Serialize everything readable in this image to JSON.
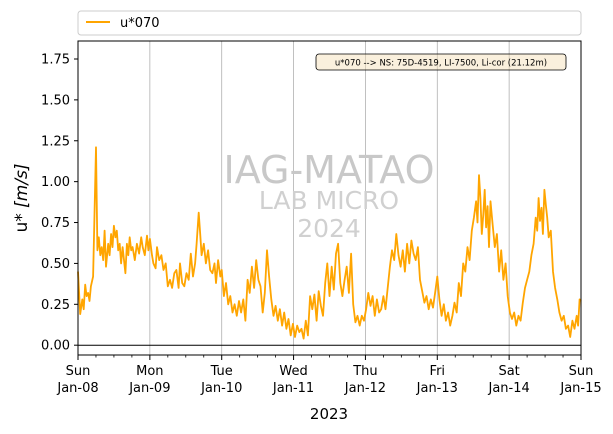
{
  "chart_data": {
    "type": "line",
    "title": "",
    "xlabel": "2023",
    "ylabel": "u* [m/s]",
    "ylabel_parts": {
      "name": "u* ",
      "unit": "[m/s]"
    },
    "ylim": [
      -0.06,
      1.86
    ],
    "xlim": [
      0,
      7
    ],
    "grid": "vertical at day ticks",
    "legend": {
      "placement": "top-left, above axes",
      "entries": [
        "u*070"
      ]
    },
    "annotation": "u*070 --> NS: 75D-4519, LI-7500, Li-cor (21.12m)",
    "watermark": [
      "IAG-MATAO",
      "LAB MICRO",
      "2024"
    ],
    "yticks": [
      {
        "value": 0.0,
        "label": "0.00"
      },
      {
        "value": 0.25,
        "label": "0.25"
      },
      {
        "value": 0.5,
        "label": "0.50"
      },
      {
        "value": 0.75,
        "label": "0.75"
      },
      {
        "value": 1.0,
        "label": "1.00"
      },
      {
        "value": 1.25,
        "label": "1.25"
      },
      {
        "value": 1.5,
        "label": "1.50"
      },
      {
        "value": 1.75,
        "label": "1.75"
      }
    ],
    "xticks": [
      {
        "value": 0,
        "day": "Sun",
        "date": "Jan-08"
      },
      {
        "value": 1,
        "day": "Mon",
        "date": "Jan-09"
      },
      {
        "value": 2,
        "day": "Tue",
        "date": "Jan-10"
      },
      {
        "value": 3,
        "day": "Wed",
        "date": "Jan-11"
      },
      {
        "value": 4,
        "day": "Thu",
        "date": "Jan-12"
      },
      {
        "value": 5,
        "day": "Fri",
        "date": "Jan-13"
      },
      {
        "value": 6,
        "day": "Sat",
        "date": "Jan-14"
      },
      {
        "value": 7,
        "day": "Sun",
        "date": "Jan-15"
      }
    ],
    "zero_line": 0,
    "series": [
      {
        "name": "u*070",
        "color": "#ffa500",
        "points": [
          [
            0.0,
            0.45
          ],
          [
            0.03,
            0.19
          ],
          [
            0.06,
            0.28
          ],
          [
            0.08,
            0.22
          ],
          [
            0.1,
            0.37
          ],
          [
            0.12,
            0.3
          ],
          [
            0.14,
            0.32
          ],
          [
            0.16,
            0.27
          ],
          [
            0.18,
            0.36
          ],
          [
            0.21,
            0.42
          ],
          [
            0.25,
            1.21
          ],
          [
            0.27,
            0.58
          ],
          [
            0.29,
            0.66
          ],
          [
            0.31,
            0.55
          ],
          [
            0.33,
            0.6
          ],
          [
            0.35,
            0.52
          ],
          [
            0.37,
            0.7
          ],
          [
            0.39,
            0.48
          ],
          [
            0.42,
            0.62
          ],
          [
            0.44,
            0.55
          ],
          [
            0.46,
            0.68
          ],
          [
            0.48,
            0.6
          ],
          [
            0.5,
            0.73
          ],
          [
            0.52,
            0.66
          ],
          [
            0.54,
            0.7
          ],
          [
            0.56,
            0.58
          ],
          [
            0.58,
            0.62
          ],
          [
            0.6,
            0.5
          ],
          [
            0.62,
            0.6
          ],
          [
            0.64,
            0.52
          ],
          [
            0.66,
            0.44
          ],
          [
            0.68,
            0.62
          ],
          [
            0.7,
            0.55
          ],
          [
            0.72,
            0.66
          ],
          [
            0.74,
            0.58
          ],
          [
            0.76,
            0.6
          ],
          [
            0.79,
            0.52
          ],
          [
            0.82,
            0.62
          ],
          [
            0.85,
            0.56
          ],
          [
            0.88,
            0.66
          ],
          [
            0.9,
            0.6
          ],
          [
            0.93,
            0.55
          ],
          [
            0.96,
            0.67
          ],
          [
            0.98,
            0.58
          ],
          [
            1.0,
            0.65
          ],
          [
            1.03,
            0.55
          ],
          [
            1.05,
            0.5
          ],
          [
            1.08,
            0.47
          ],
          [
            1.1,
            0.6
          ],
          [
            1.13,
            0.52
          ],
          [
            1.16,
            0.55
          ],
          [
            1.19,
            0.46
          ],
          [
            1.22,
            0.5
          ],
          [
            1.25,
            0.36
          ],
          [
            1.28,
            0.4
          ],
          [
            1.31,
            0.35
          ],
          [
            1.34,
            0.44
          ],
          [
            1.37,
            0.46
          ],
          [
            1.4,
            0.35
          ],
          [
            1.42,
            0.5
          ],
          [
            1.45,
            0.38
          ],
          [
            1.48,
            0.36
          ],
          [
            1.51,
            0.44
          ],
          [
            1.54,
            0.4
          ],
          [
            1.57,
            0.56
          ],
          [
            1.6,
            0.42
          ],
          [
            1.63,
            0.5
          ],
          [
            1.65,
            0.62
          ],
          [
            1.68,
            0.81
          ],
          [
            1.7,
            0.68
          ],
          [
            1.72,
            0.55
          ],
          [
            1.75,
            0.62
          ],
          [
            1.78,
            0.5
          ],
          [
            1.81,
            0.58
          ],
          [
            1.84,
            0.46
          ],
          [
            1.87,
            0.44
          ],
          [
            1.9,
            0.5
          ],
          [
            1.92,
            0.38
          ],
          [
            1.95,
            0.52
          ],
          [
            1.98,
            0.42
          ],
          [
            2.0,
            0.46
          ],
          [
            2.03,
            0.3
          ],
          [
            2.06,
            0.38
          ],
          [
            2.09,
            0.25
          ],
          [
            2.12,
            0.3
          ],
          [
            2.15,
            0.2
          ],
          [
            2.18,
            0.25
          ],
          [
            2.21,
            0.18
          ],
          [
            2.24,
            0.27
          ],
          [
            2.27,
            0.2
          ],
          [
            2.3,
            0.28
          ],
          [
            2.33,
            0.15
          ],
          [
            2.36,
            0.4
          ],
          [
            2.39,
            0.32
          ],
          [
            2.42,
            0.48
          ],
          [
            2.45,
            0.35
          ],
          [
            2.48,
            0.52
          ],
          [
            2.51,
            0.4
          ],
          [
            2.54,
            0.36
          ],
          [
            2.57,
            0.2
          ],
          [
            2.6,
            0.32
          ],
          [
            2.63,
            0.58
          ],
          [
            2.66,
            0.42
          ],
          [
            2.69,
            0.28
          ],
          [
            2.72,
            0.18
          ],
          [
            2.75,
            0.24
          ],
          [
            2.78,
            0.15
          ],
          [
            2.81,
            0.22
          ],
          [
            2.84,
            0.12
          ],
          [
            2.87,
            0.2
          ],
          [
            2.9,
            0.1
          ],
          [
            2.93,
            0.16
          ],
          [
            2.96,
            0.06
          ],
          [
            2.99,
            0.13
          ],
          [
            3.02,
            0.05
          ],
          [
            3.05,
            0.12
          ],
          [
            3.08,
            0.08
          ],
          [
            3.11,
            0.1
          ],
          [
            3.14,
            0.04
          ],
          [
            3.17,
            0.15
          ],
          [
            3.2,
            0.06
          ],
          [
            3.23,
            0.3
          ],
          [
            3.26,
            0.22
          ],
          [
            3.29,
            0.31
          ],
          [
            3.32,
            0.15
          ],
          [
            3.35,
            0.33
          ],
          [
            3.38,
            0.24
          ],
          [
            3.41,
            0.18
          ],
          [
            3.44,
            0.38
          ],
          [
            3.47,
            0.5
          ],
          [
            3.5,
            0.3
          ],
          [
            3.53,
            0.48
          ],
          [
            3.56,
            0.34
          ],
          [
            3.59,
            0.56
          ],
          [
            3.62,
            0.62
          ],
          [
            3.65,
            0.38
          ],
          [
            3.68,
            0.3
          ],
          [
            3.71,
            0.4
          ],
          [
            3.74,
            0.48
          ],
          [
            3.77,
            0.32
          ],
          [
            3.8,
            0.56
          ],
          [
            3.83,
            0.25
          ],
          [
            3.86,
            0.14
          ],
          [
            3.89,
            0.18
          ],
          [
            3.92,
            0.12
          ],
          [
            3.95,
            0.18
          ],
          [
            3.98,
            0.15
          ],
          [
            4.01,
            0.22
          ],
          [
            4.04,
            0.32
          ],
          [
            4.07,
            0.24
          ],
          [
            4.1,
            0.3
          ],
          [
            4.13,
            0.18
          ],
          [
            4.16,
            0.28
          ],
          [
            4.19,
            0.2
          ],
          [
            4.22,
            0.22
          ],
          [
            4.25,
            0.3
          ],
          [
            4.28,
            0.22
          ],
          [
            4.31,
            0.35
          ],
          [
            4.34,
            0.48
          ],
          [
            4.37,
            0.58
          ],
          [
            4.4,
            0.52
          ],
          [
            4.43,
            0.68
          ],
          [
            4.46,
            0.55
          ],
          [
            4.49,
            0.48
          ],
          [
            4.52,
            0.58
          ],
          [
            4.55,
            0.45
          ],
          [
            4.58,
            0.62
          ],
          [
            4.61,
            0.5
          ],
          [
            4.64,
            0.64
          ],
          [
            4.67,
            0.56
          ],
          [
            4.7,
            0.52
          ],
          [
            4.73,
            0.6
          ],
          [
            4.76,
            0.4
          ],
          [
            4.79,
            0.33
          ],
          [
            4.82,
            0.26
          ],
          [
            4.85,
            0.3
          ],
          [
            4.88,
            0.22
          ],
          [
            4.91,
            0.28
          ],
          [
            4.94,
            0.23
          ],
          [
            4.97,
            0.32
          ],
          [
            5.0,
            0.42
          ],
          [
            5.03,
            0.28
          ],
          [
            5.06,
            0.18
          ],
          [
            5.09,
            0.25
          ],
          [
            5.12,
            0.15
          ],
          [
            5.15,
            0.2
          ],
          [
            5.18,
            0.12
          ],
          [
            5.21,
            0.18
          ],
          [
            5.24,
            0.26
          ],
          [
            5.27,
            0.2
          ],
          [
            5.3,
            0.38
          ],
          [
            5.33,
            0.3
          ],
          [
            5.36,
            0.5
          ],
          [
            5.39,
            0.45
          ],
          [
            5.42,
            0.6
          ],
          [
            5.45,
            0.52
          ],
          [
            5.48,
            0.7
          ],
          [
            5.51,
            0.78
          ],
          [
            5.54,
            0.88
          ],
          [
            5.56,
            0.75
          ],
          [
            5.58,
            1.04
          ],
          [
            5.6,
            0.9
          ],
          [
            5.62,
            0.68
          ],
          [
            5.64,
            0.8
          ],
          [
            5.66,
            0.95
          ],
          [
            5.68,
            0.72
          ],
          [
            5.7,
            0.85
          ],
          [
            5.72,
            0.6
          ],
          [
            5.74,
            0.88
          ],
          [
            5.77,
            0.74
          ],
          [
            5.8,
            0.6
          ],
          [
            5.83,
            0.68
          ],
          [
            5.86,
            0.45
          ],
          [
            5.89,
            0.58
          ],
          [
            5.92,
            0.4
          ],
          [
            5.95,
            0.5
          ],
          [
            5.98,
            0.3
          ],
          [
            6.01,
            0.2
          ],
          [
            6.04,
            0.16
          ],
          [
            6.07,
            0.2
          ],
          [
            6.1,
            0.12
          ],
          [
            6.13,
            0.18
          ],
          [
            6.16,
            0.15
          ],
          [
            6.19,
            0.26
          ],
          [
            6.22,
            0.35
          ],
          [
            6.25,
            0.4
          ],
          [
            6.28,
            0.45
          ],
          [
            6.31,
            0.55
          ],
          [
            6.34,
            0.62
          ],
          [
            6.37,
            0.78
          ],
          [
            6.39,
            0.7
          ],
          [
            6.41,
            0.9
          ],
          [
            6.43,
            0.76
          ],
          [
            6.45,
            0.84
          ],
          [
            6.47,
            0.68
          ],
          [
            6.49,
            0.95
          ],
          [
            6.51,
            0.86
          ],
          [
            6.53,
            0.78
          ],
          [
            6.55,
            0.66
          ],
          [
            6.58,
            0.7
          ],
          [
            6.61,
            0.45
          ],
          [
            6.64,
            0.35
          ],
          [
            6.67,
            0.28
          ],
          [
            6.7,
            0.2
          ],
          [
            6.73,
            0.15
          ],
          [
            6.76,
            0.18
          ],
          [
            6.79,
            0.1
          ],
          [
            6.82,
            0.12
          ],
          [
            6.85,
            0.05
          ],
          [
            6.88,
            0.15
          ],
          [
            6.91,
            0.1
          ],
          [
            6.94,
            0.18
          ],
          [
            6.96,
            0.12
          ],
          [
            6.98,
            0.28
          ],
          [
            7.0,
            0.27
          ]
        ]
      }
    ]
  }
}
